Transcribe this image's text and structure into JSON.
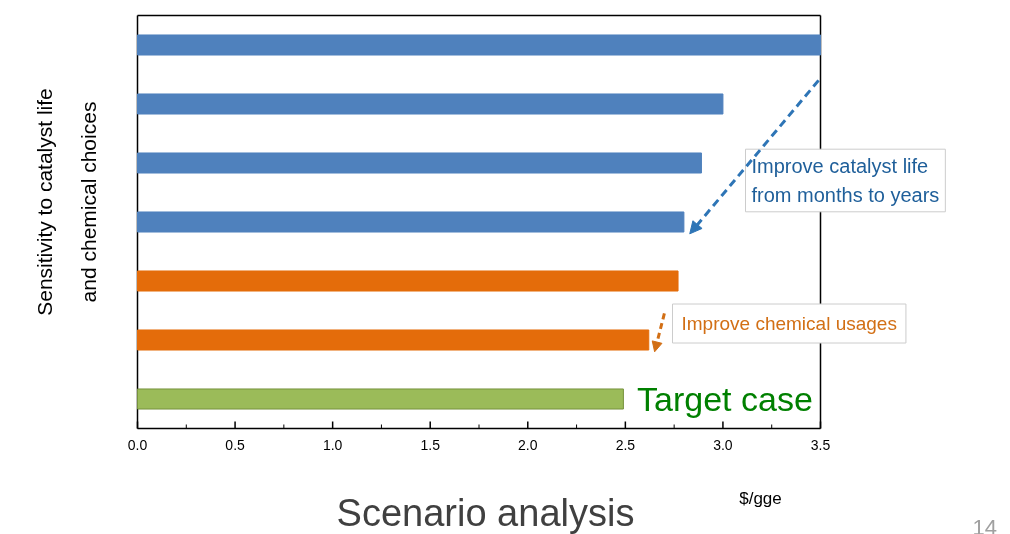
{
  "chart_data": {
    "type": "bar",
    "orientation": "horizontal",
    "title": "Scenario analysis",
    "xlabel": "$/gge",
    "ylabel": "Sensitivity to catalyst life\nand chemical choices",
    "categories": [
      null,
      null,
      null,
      null,
      null,
      null,
      null
    ],
    "values": [
      3.5,
      3.0,
      2.89,
      2.8,
      2.77,
      2.62,
      2.49
    ],
    "colors": [
      "#4f81bd",
      "#4f81bd",
      "#4f81bd",
      "#4f81bd",
      "#e46c0a",
      "#e46c0a",
      "#9bbb59"
    ],
    "xlim": [
      0,
      3.5
    ],
    "xticks": [
      {
        "value": 0,
        "label": "0.0"
      },
      {
        "value": 0.5,
        "label": "0.5"
      },
      {
        "value": 1,
        "label": "1.0"
      },
      {
        "value": 1.5,
        "label": "1.5"
      },
      {
        "value": 2,
        "label": "2.0"
      },
      {
        "value": 2.5,
        "label": "2.5"
      },
      {
        "value": 3,
        "label": "3.0"
      },
      {
        "value": 3.5,
        "label": "3.5"
      }
    ],
    "tick_labels": "x",
    "grid": false,
    "annotations": [
      "Improve catalyst life\nfrom months to years",
      "Improve chemical usages",
      "Target case",
      "14"
    ]
  }
}
